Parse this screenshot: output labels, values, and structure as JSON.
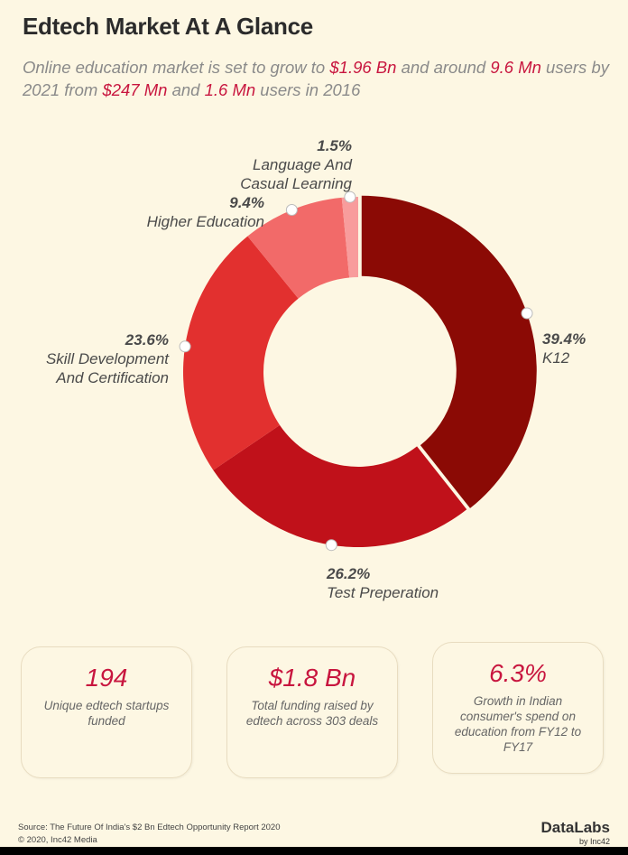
{
  "header": {
    "title": "Edtech Market At A Glance",
    "subtitle_parts": [
      "Online education market is set to grow to ",
      "$1.96 Bn",
      " and around ",
      "9.6 Mn",
      " users by 2021 from ",
      "$247 Mn",
      " and ",
      "1.6 Mn",
      " users in 2016"
    ]
  },
  "chart_data": {
    "type": "pie",
    "donut": true,
    "categories": [
      "K12",
      "Test Preperation",
      "Skill Development And Certification",
      "Higher Education",
      "Language And Casual Learning"
    ],
    "values": [
      39.4,
      26.2,
      23.6,
      9.4,
      1.5
    ],
    "labels": [
      "39.4%",
      "26.2%",
      "23.6%",
      "9.4%",
      "1.5%"
    ],
    "colors": [
      "#8b0a05",
      "#c0111a",
      "#e2302f",
      "#f26a69",
      "#f89c9c"
    ]
  },
  "label_lines": {
    "k12": [
      "K12"
    ],
    "test": [
      "Test Preperation"
    ],
    "skill": [
      "Skill Development",
      "And Certification"
    ],
    "higher": [
      "Higher Education"
    ],
    "language": [
      "Language And",
      "Casual Learning"
    ]
  },
  "cards": [
    {
      "value": "194",
      "desc": "Unique edtech startups funded"
    },
    {
      "value": "$1.8 Bn",
      "desc": "Total funding raised by edtech across 303 deals"
    },
    {
      "value": "6.3%",
      "desc": "Growth in Indian consumer's spend on education from FY12 to FY17"
    }
  ],
  "footer": {
    "source": "Source: The Future Of India's $2 Bn Edtech Opportunity Report 2020",
    "copyright": "© 2020, Inc42 Media",
    "logo": "DataLabs",
    "logo_sub": "by Inc42"
  }
}
